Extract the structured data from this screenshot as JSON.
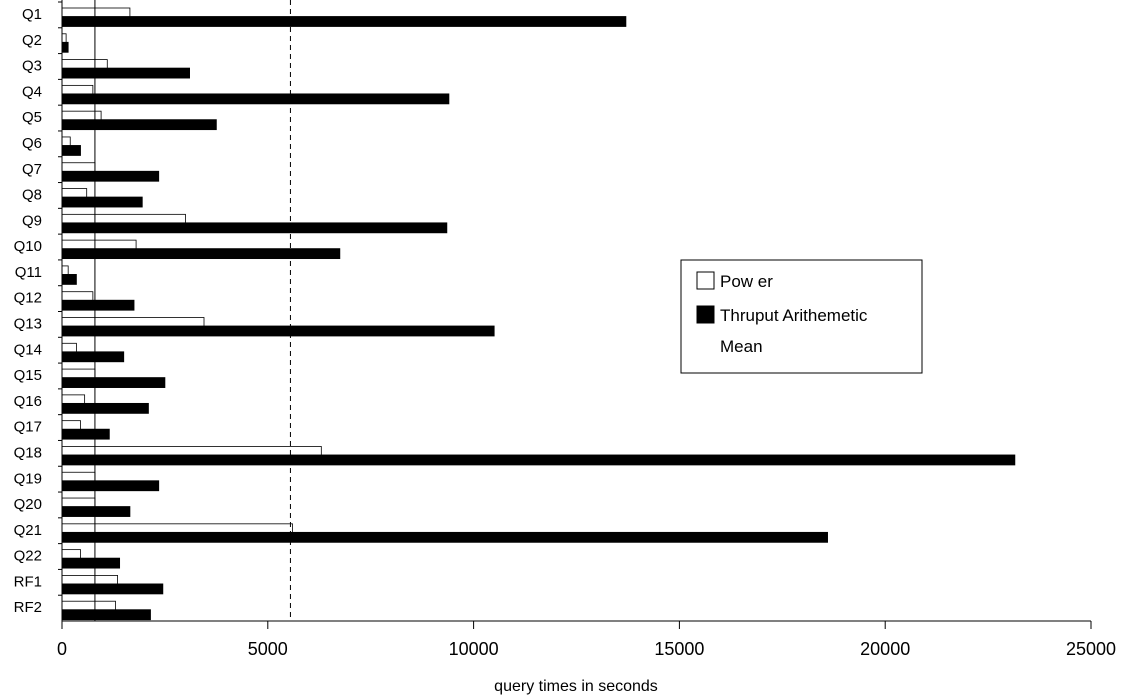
{
  "chart_data": {
    "type": "bar",
    "orientation": "horizontal",
    "categories": [
      "Q1",
      "Q2",
      "Q3",
      "Q4",
      "Q5",
      "Q6",
      "Q7",
      "Q8",
      "Q9",
      "Q10",
      "Q11",
      "Q12",
      "Q13",
      "Q14",
      "Q15",
      "Q16",
      "Q17",
      "Q18",
      "Q19",
      "Q20",
      "Q21",
      "Q22",
      "RF1",
      "RF2"
    ],
    "series": [
      {
        "name": "Pow er",
        "color": "#ffffff",
        "values": [
          1650,
          100,
          1100,
          750,
          950,
          200,
          800,
          600,
          3000,
          1800,
          150,
          750,
          3450,
          350,
          800,
          550,
          450,
          6300,
          800,
          800,
          5600,
          450,
          1350,
          1300
        ]
      },
      {
        "name": "Thruput Arithemetic Mean",
        "color": "#000000",
        "values": [
          13700,
          150,
          3100,
          9400,
          3750,
          450,
          2350,
          1950,
          9350,
          6750,
          350,
          1750,
          10500,
          1500,
          2500,
          2100,
          1150,
          23150,
          2350,
          1650,
          18600,
          1400,
          2450,
          2150
        ]
      }
    ],
    "xlabel": "query times in seconds",
    "ylabel": "",
    "xlim": [
      0,
      25000
    ],
    "x_ticks": [
      "0",
      "5000",
      "10000",
      "15000",
      "20000",
      "25000"
    ],
    "reference_lines": [
      {
        "value": 800,
        "style": "solid"
      },
      {
        "value": 5550,
        "style": "dashed"
      }
    ],
    "grid": false,
    "legend_position": "right"
  }
}
